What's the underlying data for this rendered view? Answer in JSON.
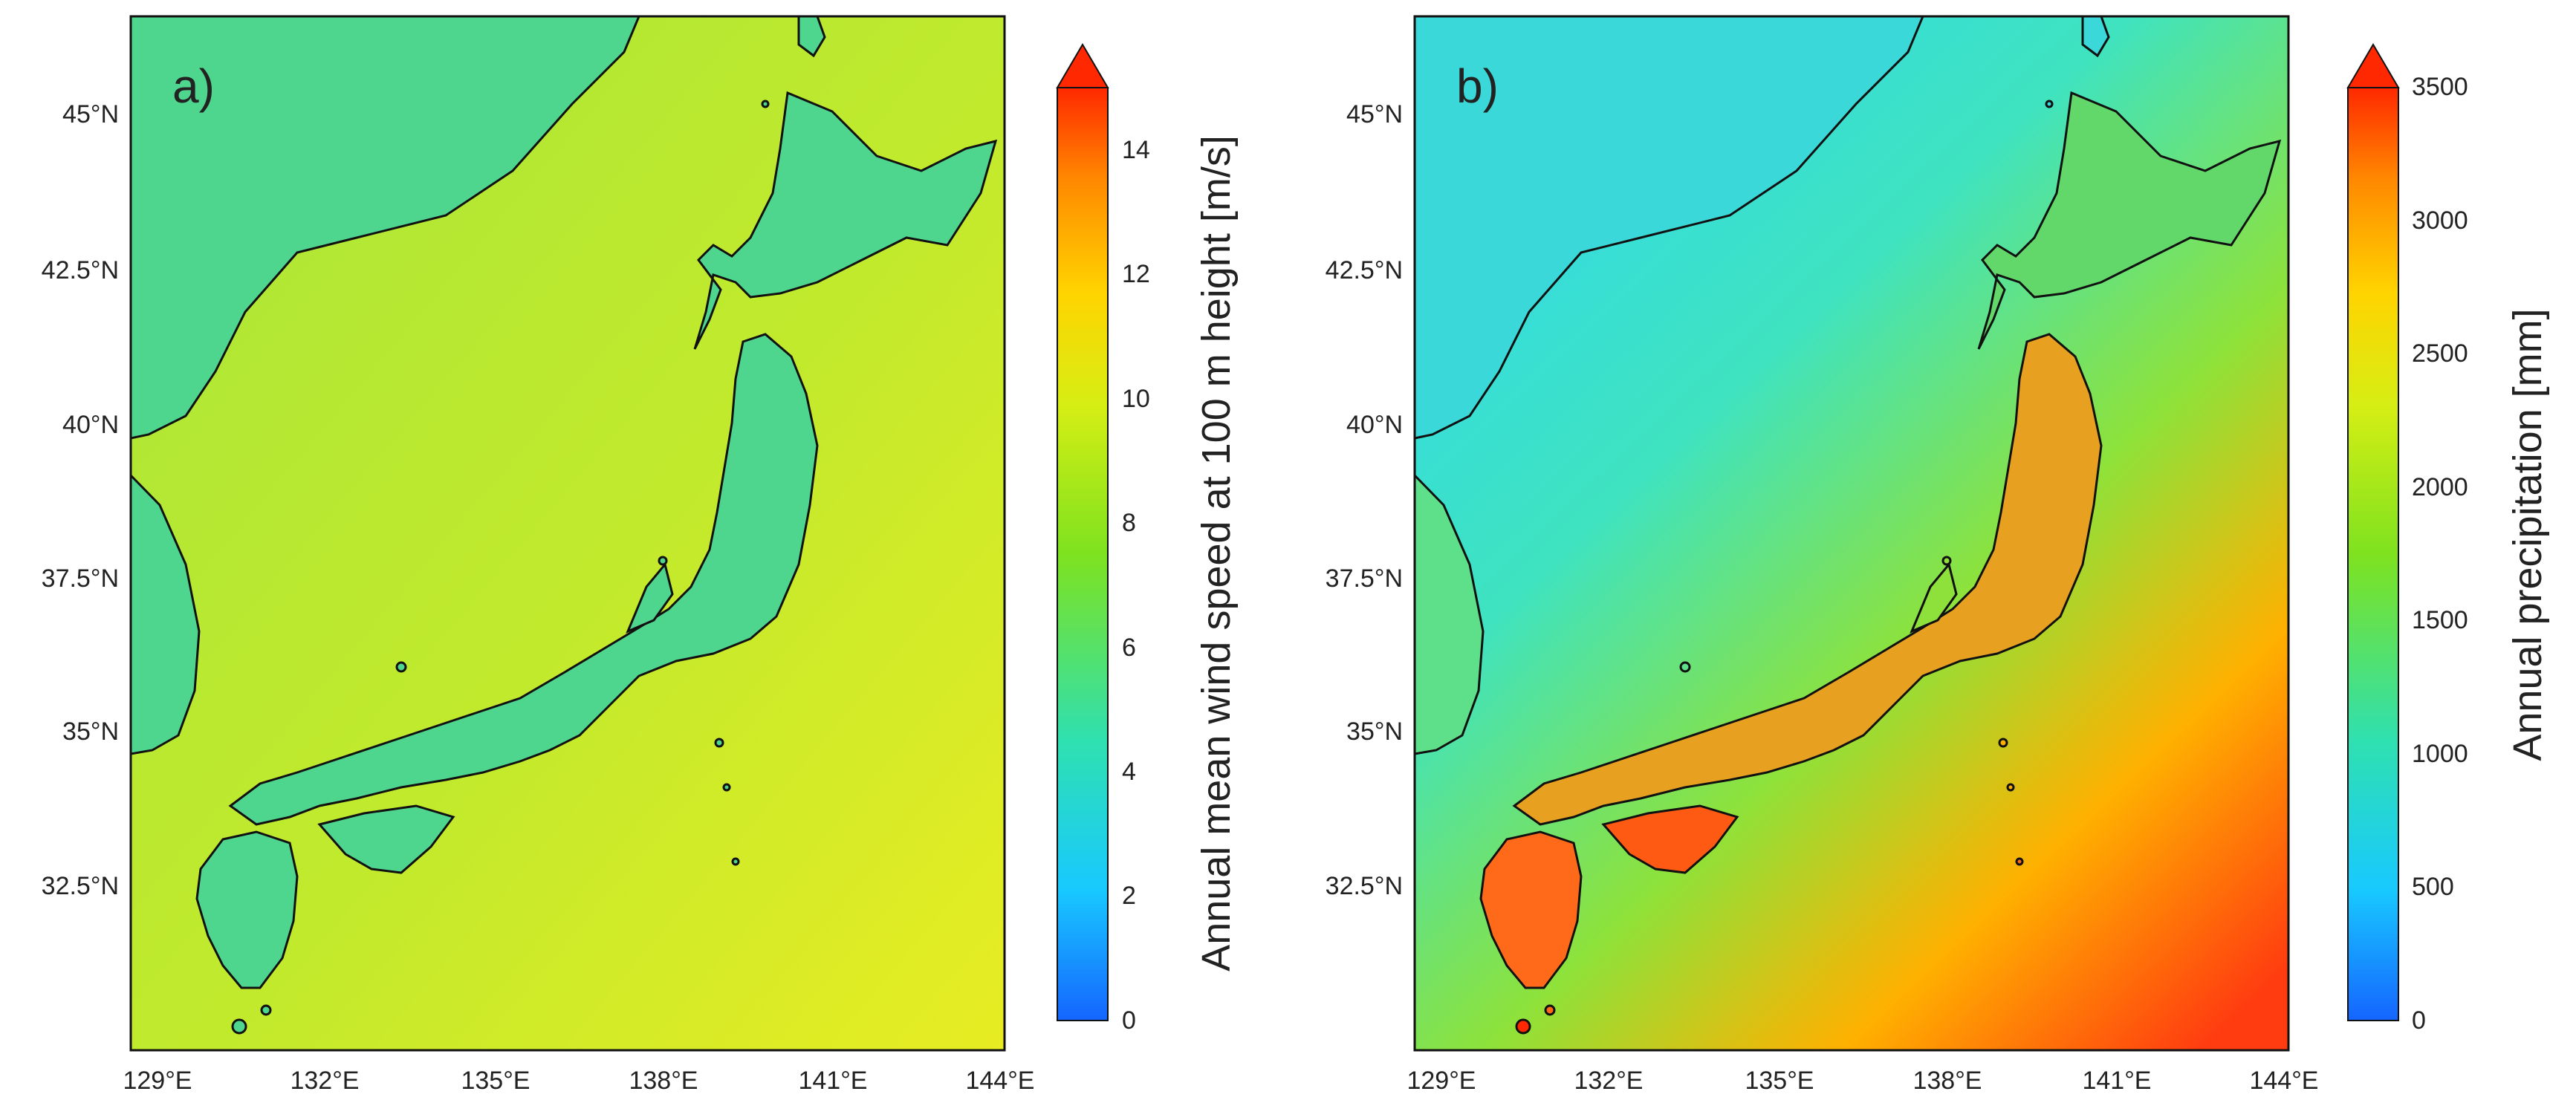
{
  "panels": [
    {
      "id": "a",
      "label": "a)",
      "colorbar": {
        "title": "Annual mean wind speed at 100 m height [m/s]",
        "ticks": [
          "0",
          "2",
          "4",
          "6",
          "8",
          "10",
          "12",
          "14"
        ],
        "min": 0,
        "max": 15,
        "extend": "max"
      },
      "sea_color": "#c6ec2e",
      "land_color": "#3fd79a"
    },
    {
      "id": "b",
      "label": "b)",
      "colorbar": {
        "title": "Annual precipitation [mm]",
        "ticks": [
          "0",
          "500",
          "1000",
          "1500",
          "2000",
          "2500",
          "3000",
          "3500"
        ],
        "min": 0,
        "max": 3500,
        "extend": "max"
      },
      "sea_color": "#3fe6b0",
      "land_color": "#46d86a"
    }
  ],
  "axes": {
    "lon_ticks": [
      "129°E",
      "132°E",
      "135°E",
      "138°E",
      "141°E",
      "144°E"
    ],
    "lat_ticks": [
      "32.5°N",
      "35°N",
      "37.5°N",
      "40°N",
      "42.5°N",
      "45°N"
    ],
    "lon_range": [
      129,
      144
    ],
    "lat_range": [
      30,
      46.5
    ]
  },
  "colormap": [
    "#1565ff",
    "#18c9ff",
    "#2fe0b0",
    "#7ee21f",
    "#d6ee14",
    "#ffd400",
    "#ff8a00",
    "#ff2800"
  ]
}
